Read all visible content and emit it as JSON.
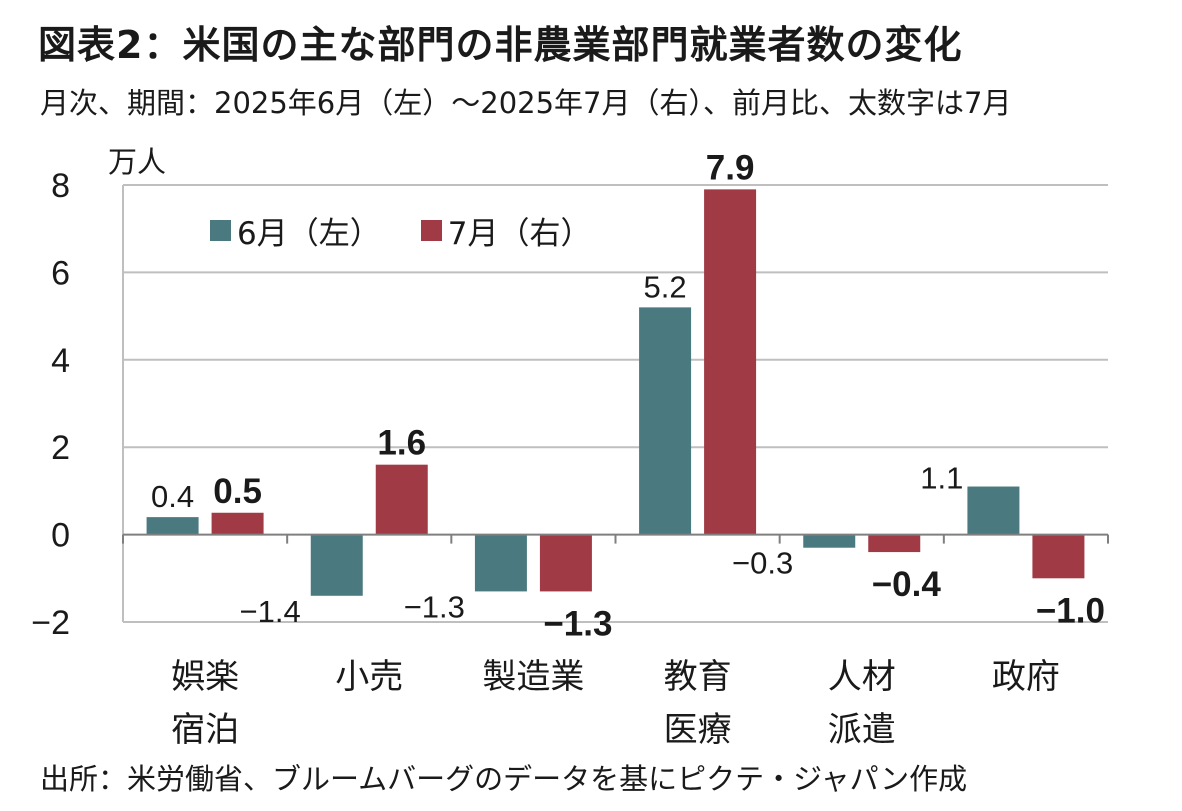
{
  "title": "図表2：米国の主な部門の非農業部門就業者数の変化",
  "subtitle": "月次、期間：2025年6月（左）～2025年7月（右）、前月比、太数字は7月",
  "source": "出所：米労働省、ブルームバーグのデータを基にピクテ・ジャパン作成",
  "colors": {
    "series1": "#4a7a80",
    "series2": "#a03a44",
    "grid": "#bfbfbf",
    "axis": "#7f7f7f"
  },
  "chart_data": {
    "type": "bar",
    "unit_label": "万人",
    "ylim": [
      -2,
      8
    ],
    "yticks": [
      "8",
      "6",
      "4",
      "2",
      "0",
      "−2"
    ],
    "ytick_values": [
      8,
      6,
      4,
      2,
      0,
      -2
    ],
    "legend": [
      "6月（左）",
      "7月（右）"
    ],
    "categories": [
      [
        "娯楽",
        "宿泊"
      ],
      [
        "小売"
      ],
      [
        "製造業"
      ],
      [
        "教育",
        "医療"
      ],
      [
        "人材",
        "派遣"
      ],
      [
        "政府"
      ]
    ],
    "series": [
      {
        "name": "6月（左）",
        "values": [
          0.4,
          -1.4,
          -1.3,
          5.2,
          -0.3,
          1.1
        ],
        "labels": [
          "0.4",
          "−1.4",
          "−1.3",
          "5.2",
          "−0.3",
          "1.1"
        ]
      },
      {
        "name": "7月（右）",
        "values": [
          0.5,
          1.6,
          -1.3,
          7.9,
          -0.4,
          -1.0
        ],
        "labels": [
          "0.5",
          "1.6",
          "−1.3",
          "7.9",
          "−0.4",
          "−1.0"
        ]
      }
    ]
  }
}
